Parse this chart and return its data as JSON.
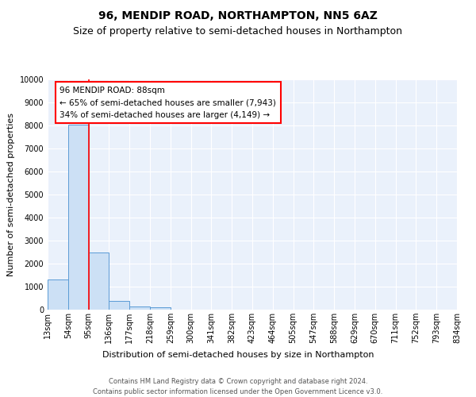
{
  "title": "96, MENDIP ROAD, NORTHAMPTON, NN5 6AZ",
  "subtitle": "Size of property relative to semi-detached houses in Northampton",
  "xlabel": "Distribution of semi-detached houses by size in Northampton",
  "ylabel": "Number of semi-detached properties",
  "footer": "Contains HM Land Registry data © Crown copyright and database right 2024.\nContains public sector information licensed under the Open Government Licence v3.0.",
  "bin_labels": [
    "13sqm",
    "54sqm",
    "95sqm",
    "136sqm",
    "177sqm",
    "218sqm",
    "259sqm",
    "300sqm",
    "341sqm",
    "382sqm",
    "423sqm",
    "464sqm",
    "505sqm",
    "547sqm",
    "588sqm",
    "629sqm",
    "670sqm",
    "711sqm",
    "752sqm",
    "793sqm",
    "834sqm"
  ],
  "bar_heights": [
    1300,
    8050,
    2500,
    380,
    150,
    100,
    0,
    0,
    0,
    0,
    0,
    0,
    0,
    0,
    0,
    0,
    0,
    0,
    0,
    0
  ],
  "bar_color": "#cce0f5",
  "bar_edge_color": "#5b9bd5",
  "property_line_x": 2.0,
  "property_line_color": "red",
  "annotation_box_text": "96 MENDIP ROAD: 88sqm\n← 65% of semi-detached houses are smaller (7,943)\n34% of semi-detached houses are larger (4,149) →",
  "ylim": [
    0,
    10000
  ],
  "yticks": [
    0,
    1000,
    2000,
    3000,
    4000,
    5000,
    6000,
    7000,
    8000,
    9000,
    10000
  ],
  "bg_color": "#eaf1fb",
  "grid_color": "#ffffff",
  "title_fontsize": 10,
  "subtitle_fontsize": 9,
  "axis_label_fontsize": 8,
  "tick_fontsize": 7,
  "annotation_fontsize": 7.5,
  "footer_fontsize": 6
}
